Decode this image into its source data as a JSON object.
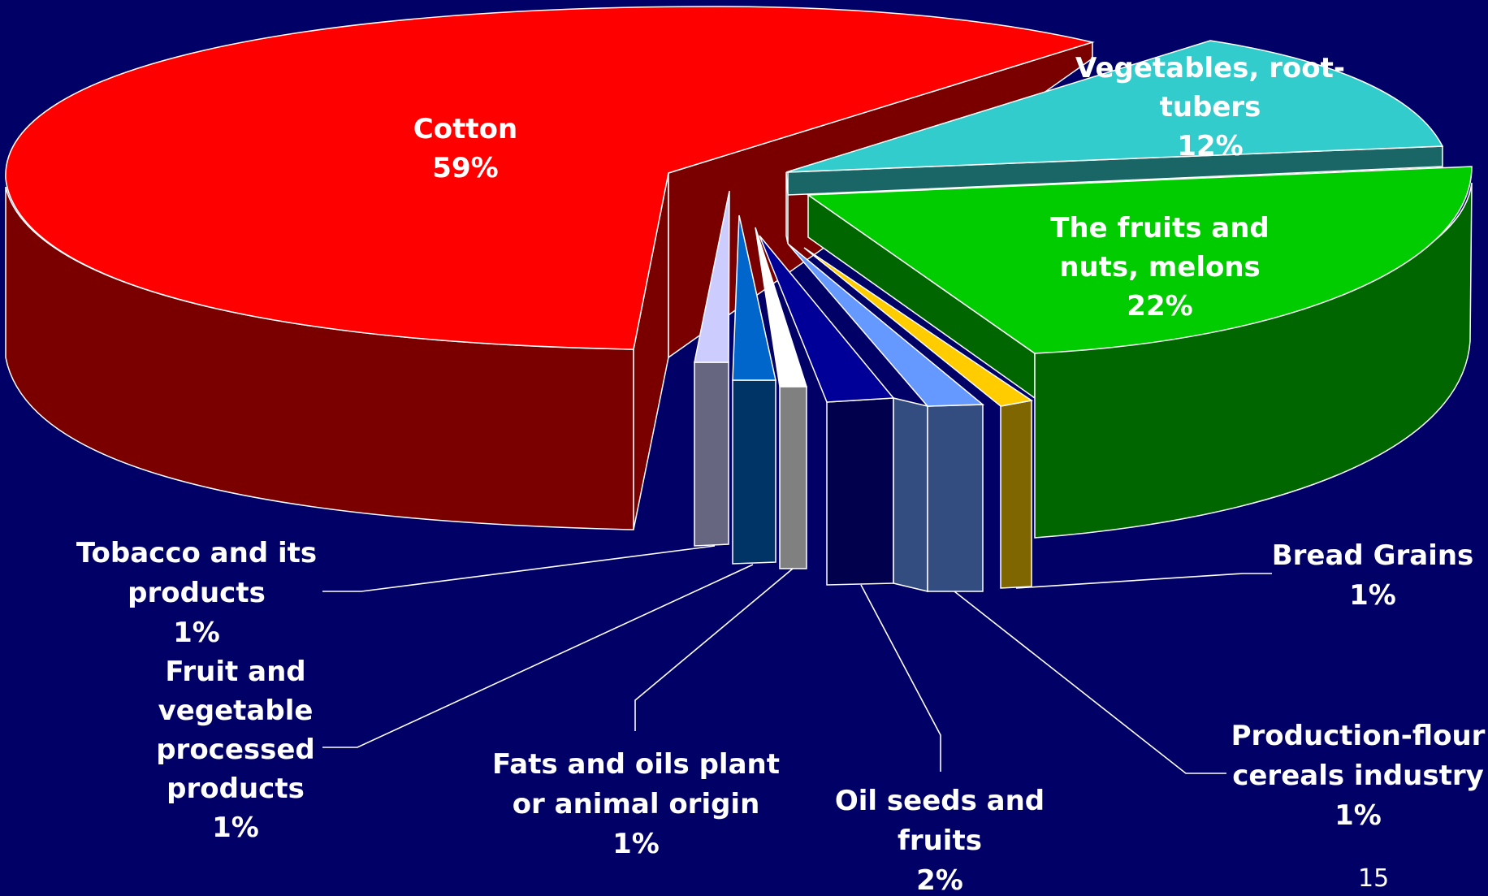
{
  "chart_data": {
    "type": "pie",
    "title": "",
    "style": "3d-exploded",
    "slices": [
      {
        "key": "cotton",
        "label_lines": [
          "Cotton"
        ],
        "percent_label": "59%",
        "value": 59,
        "color": "#ff0000",
        "side_color": "#7a0000"
      },
      {
        "key": "vegetables",
        "label_lines": [
          "Vegetables, root-",
          "tubers"
        ],
        "percent_label": "12%",
        "value": 12,
        "color": "#33cccc",
        "side_color": "#1a6666"
      },
      {
        "key": "fruits_nuts",
        "label_lines": [
          "The fruits and",
          "nuts, melons"
        ],
        "percent_label": "22%",
        "value": 22,
        "color": "#00cc00",
        "side_color": "#006600"
      },
      {
        "key": "bread_grains",
        "label_lines": [
          "Bread Grains"
        ],
        "percent_label": "1%",
        "value": 1,
        "color": "#ffcc00",
        "side_color": "#806600"
      },
      {
        "key": "production_flour",
        "label_lines": [
          "Production-flour",
          "cereals industry"
        ],
        "percent_label": "1%",
        "value": 1,
        "color": "#6699ff",
        "side_color": "#334d80"
      },
      {
        "key": "oil_seeds",
        "label_lines": [
          "Oil seeds and",
          "fruits"
        ],
        "percent_label": "2%",
        "value": 2,
        "color": "#000099",
        "side_color": "#00004d"
      },
      {
        "key": "fats_oils",
        "label_lines": [
          "Fats and oils plant",
          "or animal origin"
        ],
        "percent_label": "1%",
        "value": 1,
        "color": "#ffffff",
        "side_color": "#808080"
      },
      {
        "key": "fruit_veg_processed",
        "label_lines": [
          "Fruit and",
          "vegetable",
          "processed",
          "products"
        ],
        "percent_label": "1%",
        "value": 1,
        "color": "#0066cc",
        "side_color": "#003366"
      },
      {
        "key": "tobacco",
        "label_lines": [
          "Tobacco and its",
          "products"
        ],
        "percent_label": "1%",
        "value": 1,
        "color": "#ccccff",
        "side_color": "#666680"
      }
    ]
  },
  "slide_number": "15",
  "colors": {
    "background": "#000066",
    "label_text": "#ffffff",
    "leader_line": "#ffffff",
    "outline": "#ffffff"
  }
}
